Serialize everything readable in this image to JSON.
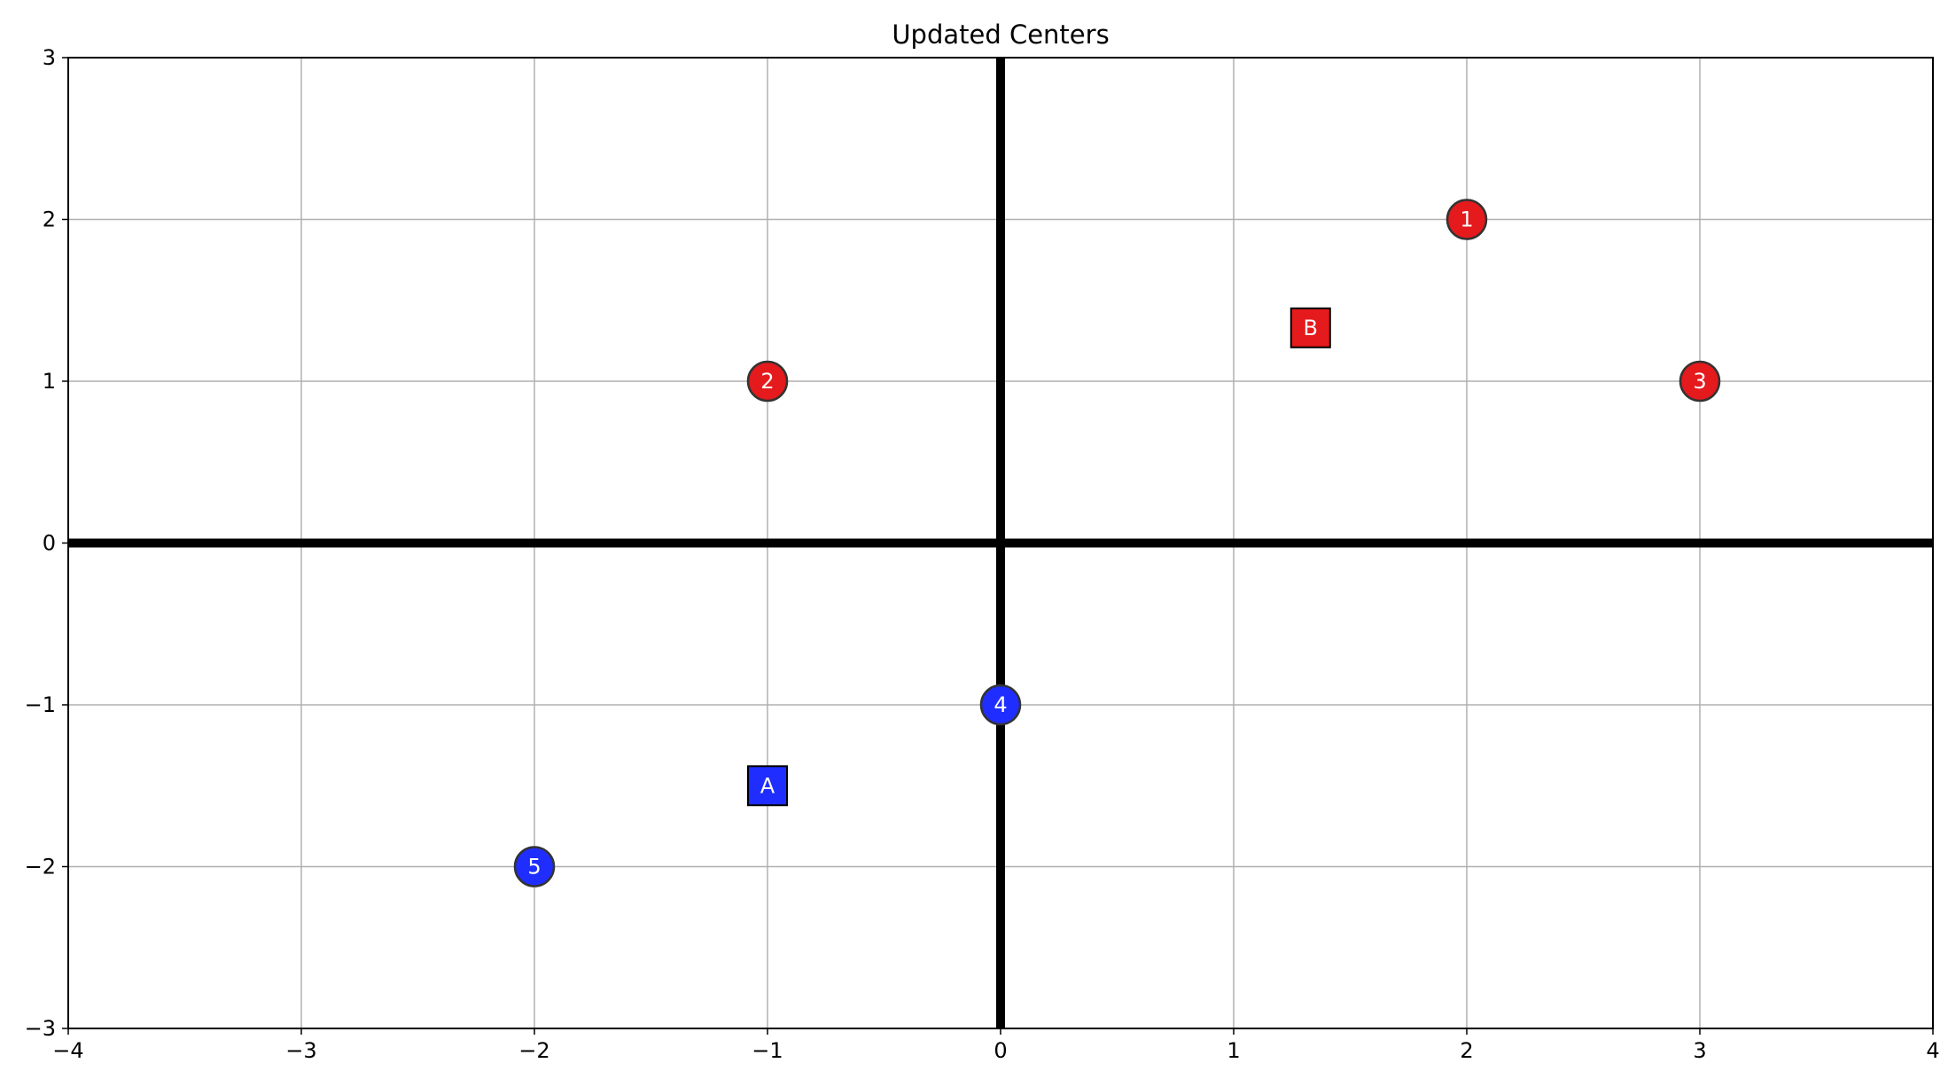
{
  "chart_data": {
    "type": "scatter",
    "title": "Updated Centers",
    "xlabel": "",
    "ylabel": "",
    "xlim": [
      -4,
      4
    ],
    "ylim": [
      -3,
      3
    ],
    "x_ticks": [
      -4,
      -3,
      -2,
      -1,
      0,
      1,
      2,
      3,
      4
    ],
    "y_ticks": [
      -3,
      -2,
      -1,
      0,
      1,
      2,
      3
    ],
    "x_tick_labels": [
      "−4",
      "−3",
      "−2",
      "−1",
      "0",
      "1",
      "2",
      "3",
      "4"
    ],
    "y_tick_labels": [
      "−3",
      "−2",
      "−1",
      "0",
      "1",
      "2",
      "3"
    ],
    "grid": true,
    "axis_lines": {
      "x": 0,
      "y": 0
    },
    "points": [
      {
        "label": "1",
        "x": 2,
        "y": 2,
        "marker": "circle",
        "color": "#e41a1c"
      },
      {
        "label": "2",
        "x": -1,
        "y": 1,
        "marker": "circle",
        "color": "#e41a1c"
      },
      {
        "label": "3",
        "x": 3,
        "y": 1,
        "marker": "circle",
        "color": "#e41a1c"
      },
      {
        "label": "4",
        "x": 0,
        "y": -1,
        "marker": "circle",
        "color": "#1f2eff"
      },
      {
        "label": "5",
        "x": -2,
        "y": -2,
        "marker": "circle",
        "color": "#1f2eff"
      }
    ],
    "centers": [
      {
        "label": "A",
        "x": -1,
        "y": -1.5,
        "marker": "square",
        "color": "#1f2eff"
      },
      {
        "label": "B",
        "x": 1.33,
        "y": 1.33,
        "marker": "square",
        "color": "#e41a1c"
      }
    ]
  }
}
